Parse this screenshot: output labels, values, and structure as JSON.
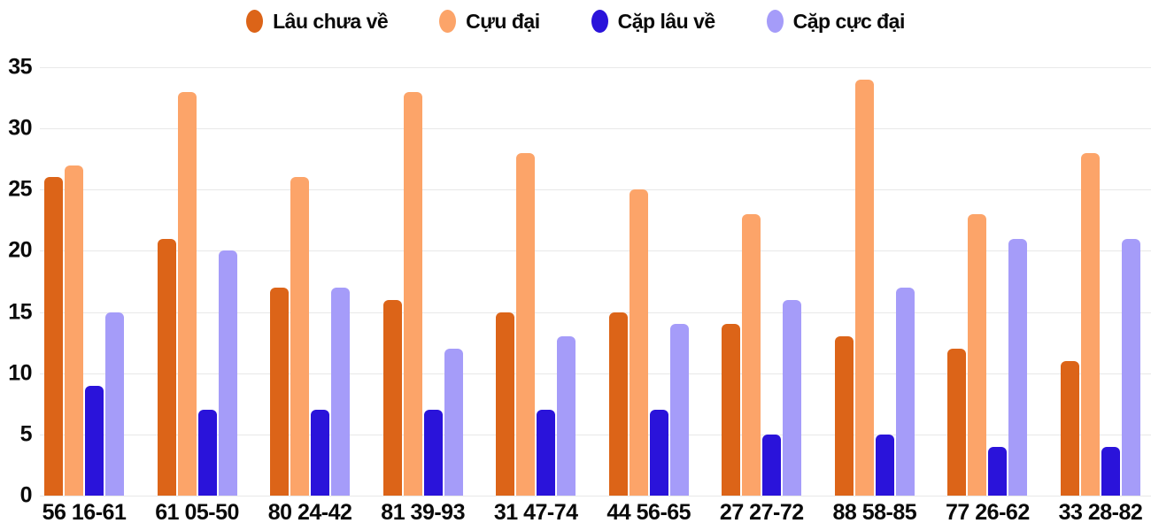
{
  "chart_data": {
    "type": "bar",
    "title": "",
    "xlabel": "",
    "ylabel": "",
    "ylim": [
      0,
      35
    ],
    "y_ticks": [
      0,
      5,
      10,
      15,
      20,
      25,
      30,
      35
    ],
    "grid": "horizontal",
    "legend_position": "top",
    "categories": [
      "56 16-61",
      "61 05-50",
      "80 24-42",
      "81 39-93",
      "31 47-74",
      "44 56-65",
      "27 27-72",
      "88 58-85",
      "77 26-62",
      "33 28-82"
    ],
    "series": [
      {
        "name": "Lâu chưa về",
        "color": "#dc6418",
        "values": [
          26,
          21,
          17,
          16,
          15,
          15,
          14,
          13,
          12,
          11
        ]
      },
      {
        "name": "Cựu đại",
        "color": "#fca469",
        "values": [
          27,
          33,
          26,
          33,
          28,
          25,
          23,
          34,
          23,
          28
        ]
      },
      {
        "name": "Cặp lâu về",
        "color": "#2a13da",
        "values": [
          9,
          7,
          7,
          7,
          7,
          7,
          5,
          5,
          4,
          4
        ]
      },
      {
        "name": "Cặp cực đại",
        "color": "#a59cf9",
        "values": [
          15,
          20,
          17,
          12,
          13,
          14,
          16,
          17,
          21,
          21
        ]
      }
    ],
    "colors": {
      "text": "#0a0a0a",
      "gridline": "#e8e8e8",
      "background": "#ffffff"
    }
  }
}
